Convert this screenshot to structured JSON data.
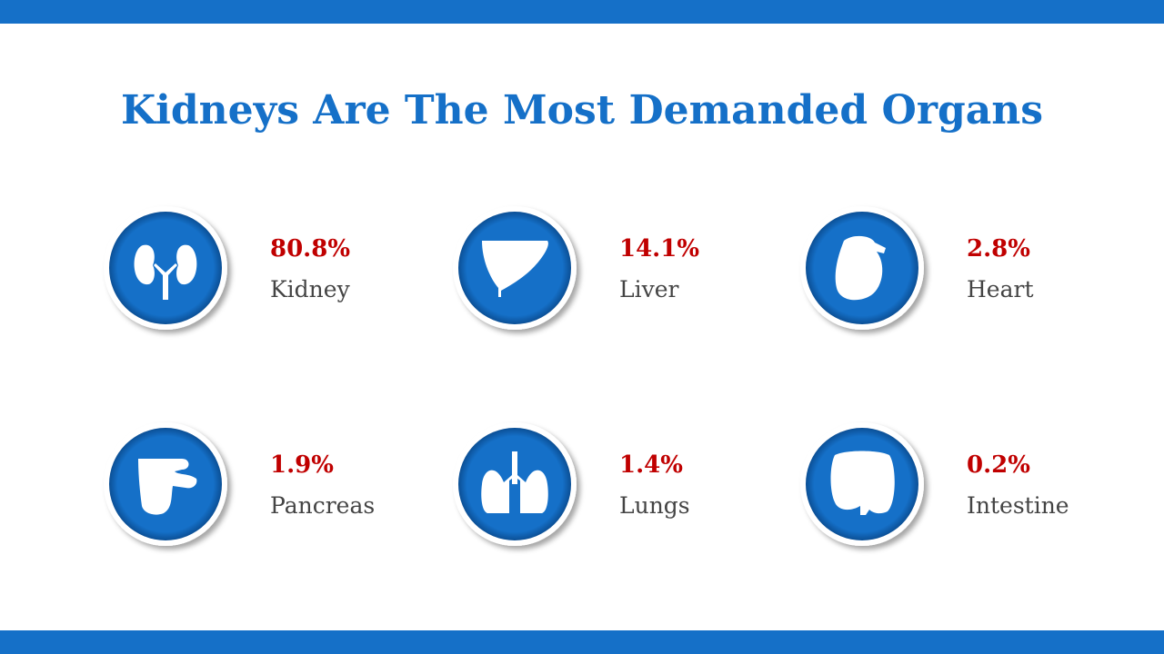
{
  "header": {
    "title": "Kidneys Are The Most Demanded Organs"
  },
  "items": [
    {
      "value": "80.8%",
      "label": "Kidney"
    },
    {
      "value": "14.1%",
      "label": "Liver"
    },
    {
      "value": "2.8%",
      "label": "Heart"
    },
    {
      "value": "1.9%",
      "label": "Pancreas"
    },
    {
      "value": "1.4%",
      "label": "Lungs"
    },
    {
      "value": "0.2%",
      "label": "Intestine"
    }
  ]
}
